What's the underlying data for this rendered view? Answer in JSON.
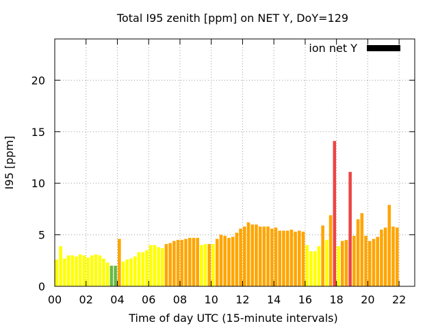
{
  "chart_data": {
    "type": "bar",
    "title": "Total I95 zenith [ppm] on NET Y, DoY=129",
    "xlabel": "Time of day UTC (15-minute intervals)",
    "ylabel": "I95 [ppm]",
    "xlim": [
      0,
      23
    ],
    "ylim": [
      0,
      24
    ],
    "x_ticks": [
      {
        "value": 0,
        "label": "00"
      },
      {
        "value": 2,
        "label": "02"
      },
      {
        "value": 4,
        "label": "04"
      },
      {
        "value": 6,
        "label": "06"
      },
      {
        "value": 8,
        "label": "08"
      },
      {
        "value": 10,
        "label": "10"
      },
      {
        "value": 12,
        "label": "12"
      },
      {
        "value": 14,
        "label": "14"
      },
      {
        "value": 16,
        "label": "16"
      },
      {
        "value": 18,
        "label": "18"
      },
      {
        "value": 20,
        "label": "20"
      },
      {
        "value": 22,
        "label": "22"
      }
    ],
    "y_ticks": [
      0,
      5,
      10,
      15,
      20
    ],
    "grid": true,
    "legend": {
      "position": "top-right",
      "entries": [
        {
          "name": "ion net Y",
          "color": "#000000"
        }
      ]
    },
    "interval_hours": 0.25,
    "colors": {
      "yellow": "#ffff00",
      "green": "#66bb44",
      "orange": "#ffa500",
      "red": "#ee4444"
    },
    "series": [
      {
        "name": "ion net Y",
        "values": [
          2.6,
          3.9,
          2.7,
          3.0,
          3.0,
          2.9,
          3.1,
          3.0,
          2.8,
          3.0,
          3.1,
          3.0,
          2.7,
          2.3,
          2.0,
          2.0,
          4.6,
          2.4,
          2.6,
          2.7,
          2.9,
          3.3,
          3.3,
          3.5,
          4.0,
          4.0,
          3.8,
          3.7,
          4.1,
          4.2,
          4.4,
          4.5,
          4.5,
          4.6,
          4.7,
          4.7,
          4.7,
          4.0,
          4.1,
          4.1,
          4.1,
          4.6,
          5.0,
          4.9,
          4.7,
          4.8,
          5.2,
          5.6,
          5.8,
          6.2,
          6.0,
          6.0,
          5.8,
          5.8,
          5.8,
          5.6,
          5.7,
          5.4,
          5.4,
          5.4,
          5.5,
          5.3,
          5.4,
          5.3,
          4.0,
          3.4,
          3.4,
          3.9,
          5.9,
          4.5,
          6.9,
          14.1,
          3.9,
          4.4,
          4.5,
          11.1,
          4.9,
          6.5,
          7.1,
          4.9,
          4.4,
          4.6,
          4.8,
          5.5,
          5.7,
          7.9,
          5.8,
          5.7
        ],
        "color_classes": [
          "yellow",
          "yellow",
          "yellow",
          "yellow",
          "yellow",
          "yellow",
          "yellow",
          "yellow",
          "yellow",
          "yellow",
          "yellow",
          "yellow",
          "yellow",
          "yellow",
          "green",
          "green",
          "orange",
          "yellow",
          "yellow",
          "yellow",
          "yellow",
          "yellow",
          "yellow",
          "yellow",
          "yellow",
          "yellow",
          "yellow",
          "yellow",
          "orange",
          "orange",
          "orange",
          "orange",
          "orange",
          "orange",
          "orange",
          "orange",
          "orange",
          "yellow",
          "yellow",
          "orange",
          "yellow",
          "orange",
          "orange",
          "orange",
          "orange",
          "orange",
          "orange",
          "orange",
          "orange",
          "orange",
          "orange",
          "orange",
          "orange",
          "orange",
          "orange",
          "orange",
          "orange",
          "orange",
          "orange",
          "orange",
          "orange",
          "orange",
          "orange",
          "orange",
          "yellow",
          "yellow",
          "yellow",
          "yellow",
          "orange",
          "yellow",
          "orange",
          "red",
          "yellow",
          "orange",
          "orange",
          "red",
          "orange",
          "orange",
          "orange",
          "orange",
          "orange",
          "orange",
          "orange",
          "orange",
          "orange",
          "orange",
          "orange",
          "orange"
        ]
      }
    ]
  }
}
